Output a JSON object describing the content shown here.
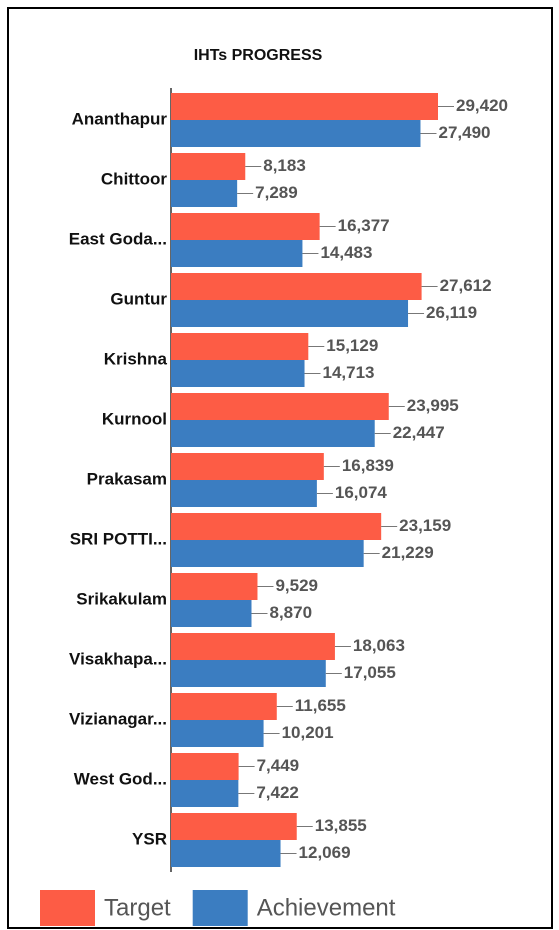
{
  "chart_data": {
    "type": "bar",
    "orientation": "horizontal",
    "title": "IHTs PROGRESS",
    "categories": [
      "Ananthapur",
      "Chittoor",
      "East Goda...",
      "Guntur",
      "Krishna",
      "Kurnool",
      "Prakasam",
      "SRI POTTI...",
      "Srikakulam",
      "Visakhapa...",
      "Vizianagar...",
      "West God...",
      "YSR"
    ],
    "series": [
      {
        "name": "Target",
        "color": "#fd5c45",
        "values": [
          29420,
          8183,
          16377,
          27612,
          15129,
          23995,
          16839,
          23159,
          9529,
          18063,
          11655,
          7449,
          13855
        ],
        "value_labels": [
          "29,420",
          "8,183",
          "16,377",
          "27,612",
          "15,129",
          "23,995",
          "16,839",
          "23,159",
          "9,529",
          "18,063",
          "11,655",
          "7,449",
          "13,855"
        ]
      },
      {
        "name": "Achievement",
        "color": "#3b7dc1",
        "values": [
          27490,
          7289,
          14483,
          26119,
          14713,
          22447,
          16074,
          21229,
          8870,
          17055,
          10201,
          7422,
          12069
        ],
        "value_labels": [
          "27,490",
          "7,289",
          "14,483",
          "26,119",
          "14,713",
          "22,447",
          "16,074",
          "21,229",
          "8,870",
          "17,055",
          "10,201",
          "7,422",
          "12,069"
        ]
      }
    ],
    "legend": "bottom"
  }
}
